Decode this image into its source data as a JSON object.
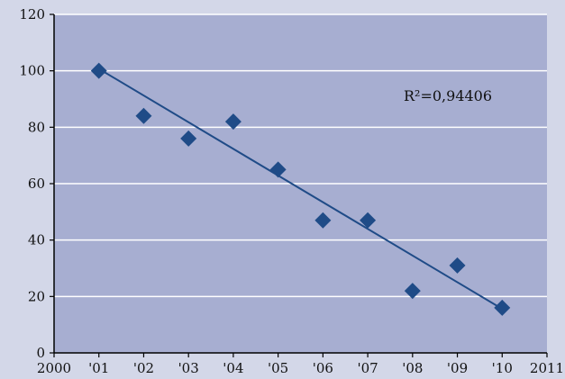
{
  "chart_data": {
    "type": "scatter",
    "title": "",
    "xlabel": "",
    "ylabel": "",
    "x": [
      2001,
      2002,
      2003,
      2004,
      2005,
      2006,
      2007,
      2008,
      2009,
      2010
    ],
    "y": [
      100,
      84,
      76,
      82,
      65,
      47,
      47,
      22,
      31,
      16
    ],
    "xlim": [
      2000,
      2011
    ],
    "ylim": [
      0,
      120
    ],
    "x_tick_values": [
      2000,
      2001,
      2002,
      2003,
      2004,
      2005,
      2006,
      2007,
      2008,
      2009,
      2010,
      2011
    ],
    "x_tick_labels": [
      "2000",
      "'01",
      "'02",
      "'03",
      "'04",
      "'05",
      "'06",
      "'07",
      "'08",
      "'09",
      "'10",
      "2011"
    ],
    "y_tick_values": [
      0,
      20,
      40,
      60,
      80,
      100,
      120
    ],
    "y_tick_labels": [
      "0",
      "20",
      "40",
      "60",
      "80",
      "100",
      "120"
    ],
    "grid": true,
    "legend": "none",
    "trendline": {
      "type": "linear",
      "from": [
        2001,
        100.7
      ],
      "to": [
        2010,
        15.6
      ]
    },
    "annotation": "R²=0,94406",
    "colors": {
      "page_background": "#d3d7e8",
      "plot_background": "#a7aed1",
      "gridline": "#ffffff",
      "marker": "#1f4b87",
      "trendline": "#1f4b87"
    },
    "marker_shape": "diamond"
  }
}
